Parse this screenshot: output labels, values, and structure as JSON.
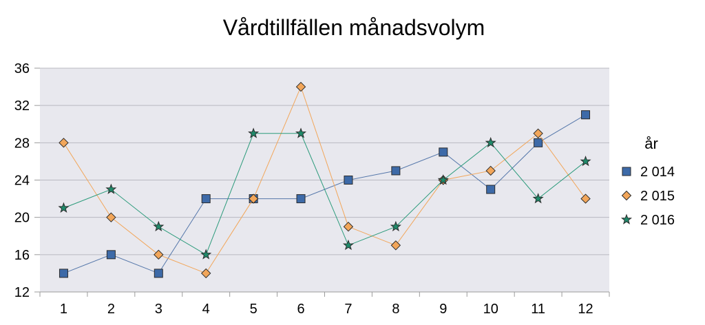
{
  "chart_data": {
    "type": "line",
    "title": "Vårdtillfällen månadsvolym",
    "xlabel": "",
    "ylabel": "",
    "categories": [
      "1",
      "2",
      "3",
      "4",
      "5",
      "6",
      "7",
      "8",
      "9",
      "10",
      "11",
      "12"
    ],
    "ylim": [
      12,
      36
    ],
    "yticks": [
      "12",
      "16",
      "20",
      "24",
      "28",
      "32",
      "36"
    ],
    "grid": true,
    "legend": {
      "title": "år",
      "position": "right"
    },
    "plot_background": "#e8e8ee",
    "series": [
      {
        "name": "2 014",
        "marker": "square",
        "color": "#3d6aa8",
        "line_color": "#5577aa",
        "values": [
          14,
          16,
          14,
          22,
          22,
          22,
          24,
          25,
          27,
          23,
          28,
          31
        ]
      },
      {
        "name": "2 015",
        "marker": "diamond",
        "color": "#f2a65a",
        "line_color": "#f2a65a",
        "values": [
          28,
          20,
          16,
          14,
          22,
          34,
          19,
          17,
          24,
          25,
          29,
          22
        ]
      },
      {
        "name": "2 016",
        "marker": "star",
        "color": "#1f8a6a",
        "line_color": "#2a9a7a",
        "values": [
          21,
          23,
          19,
          16,
          29,
          29,
          17,
          19,
          24,
          28,
          22,
          26
        ]
      }
    ]
  }
}
